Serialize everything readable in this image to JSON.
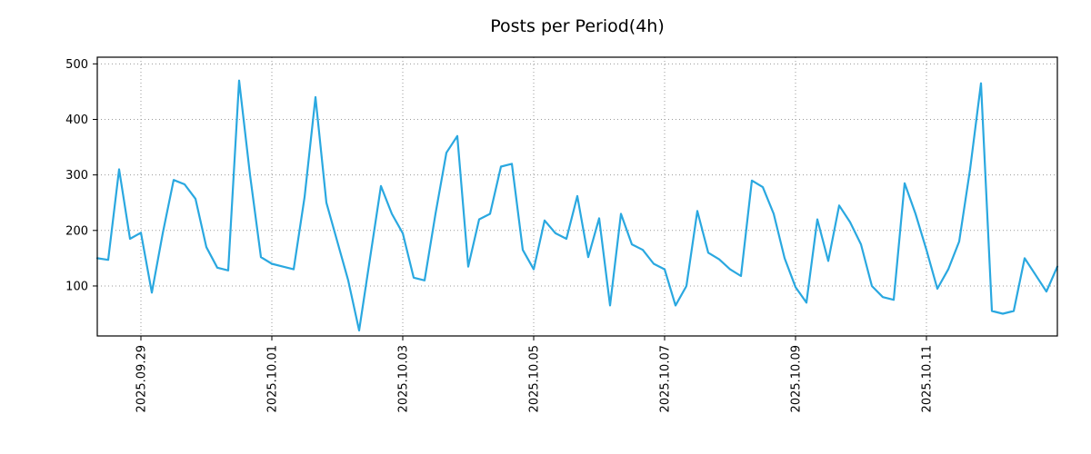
{
  "chart": {
    "title": "Posts per Period(4h)"
  },
  "chart_data": {
    "type": "line",
    "title": "Posts per Period(4h)",
    "xlabel": "",
    "ylabel": "",
    "legend_position": "none",
    "grid": "dotted",
    "line_color": "#2aa8e0",
    "grid_color": "#9a9a9a",
    "axis_color": "#000000",
    "x_tick_labels": [
      "2025.09.29",
      "2025.10.01",
      "2025.10.03",
      "2025.10.05",
      "2025.10.07",
      "2025.10.09",
      "2025.10.11"
    ],
    "x_tick_indices": [
      4,
      16,
      28,
      40,
      52,
      64,
      76
    ],
    "y_ticks": [
      100,
      200,
      300,
      400,
      500
    ],
    "ylim": [
      10,
      512
    ],
    "x_unit": "4h period",
    "series": [
      {
        "name": "posts",
        "values": [
          150,
          147,
          310,
          185,
          196,
          88,
          195,
          291,
          283,
          257,
          170,
          133,
          128,
          470,
          300,
          152,
          140,
          135,
          130,
          260,
          440,
          250,
          180,
          110,
          20,
          150,
          280,
          230,
          195,
          115,
          110,
          230,
          340,
          370,
          135,
          220,
          230,
          315,
          320,
          165,
          130,
          218,
          195,
          185,
          262,
          152,
          222,
          65,
          230,
          175,
          165,
          140,
          130,
          65,
          100,
          235,
          160,
          148,
          130,
          118,
          290,
          278,
          230,
          150,
          98,
          70,
          220,
          145,
          245,
          215,
          175,
          100,
          80,
          75,
          285,
          230,
          165,
          95,
          130,
          180,
          310,
          465,
          55,
          50,
          55,
          150,
          120,
          90,
          135
        ]
      }
    ]
  }
}
